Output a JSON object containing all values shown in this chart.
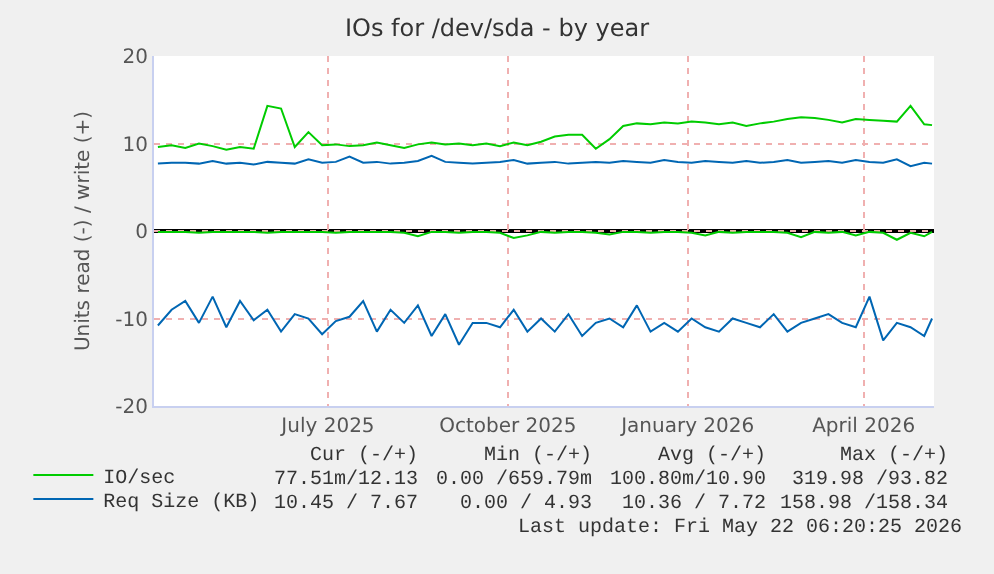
{
  "chart_data": {
    "type": "line",
    "title": "IOs for /dev/sda - by year",
    "ylabel": "Units read (-) / write (+)",
    "x": [
      "2025-04-20",
      "2025-04-27",
      "2025-05-04",
      "2025-05-11",
      "2025-05-18",
      "2025-05-25",
      "2025-06-01",
      "2025-06-08",
      "2025-06-15",
      "2025-06-22",
      "2025-06-29",
      "2025-07-06",
      "2025-07-13",
      "2025-07-20",
      "2025-07-27",
      "2025-08-03",
      "2025-08-10",
      "2025-08-17",
      "2025-08-24",
      "2025-08-31",
      "2025-09-07",
      "2025-09-14",
      "2025-09-21",
      "2025-09-28",
      "2025-10-05",
      "2025-10-12",
      "2025-10-19",
      "2025-10-26",
      "2025-11-02",
      "2025-11-09",
      "2025-11-16",
      "2025-11-23",
      "2025-11-30",
      "2025-12-07",
      "2025-12-14",
      "2025-12-21",
      "2025-12-28",
      "2026-01-04",
      "2026-01-11",
      "2026-01-18",
      "2026-01-25",
      "2026-02-01",
      "2026-02-08",
      "2026-02-15",
      "2026-02-22",
      "2026-03-01",
      "2026-03-08",
      "2026-03-15",
      "2026-03-22",
      "2026-03-29",
      "2026-04-05",
      "2026-04-12",
      "2026-04-19",
      "2026-04-26",
      "2026-05-03",
      "2026-05-10",
      "2026-05-17",
      "2026-05-21"
    ],
    "series": [
      {
        "name": "IO/sec",
        "color": "#00cc00",
        "values": [
          9.6,
          9.8,
          9.5,
          10.0,
          9.7,
          9.3,
          9.6,
          9.4,
          14.3,
          14.0,
          9.6,
          11.3,
          9.8,
          9.9,
          9.7,
          9.8,
          10.1,
          9.8,
          9.5,
          9.9,
          10.1,
          9.9,
          10.0,
          9.8,
          10.0,
          9.7,
          10.1,
          9.8,
          10.2,
          10.8,
          11.0,
          11.0,
          9.4,
          10.5,
          12.0,
          12.3,
          12.2,
          12.4,
          12.3,
          12.5,
          12.4,
          12.2,
          12.4,
          12.0,
          12.3,
          12.5,
          12.8,
          13.0,
          12.9,
          12.7,
          12.4,
          12.8,
          12.7,
          12.6,
          12.5,
          14.3,
          12.2,
          12.1
        ]
      },
      {
        "color": "#00cc00",
        "values": [
          -0.1,
          -0.1,
          -0.1,
          -0.2,
          -0.1,
          -0.1,
          -0.1,
          -0.1,
          -0.2,
          -0.1,
          -0.1,
          -0.1,
          -0.1,
          -0.2,
          -0.1,
          -0.1,
          -0.1,
          -0.1,
          -0.2,
          -0.6,
          -0.1,
          -0.1,
          -0.2,
          -0.1,
          -0.1,
          -0.2,
          -0.8,
          -0.5,
          -0.1,
          -0.2,
          -0.1,
          -0.1,
          -0.2,
          -0.4,
          -0.1,
          -0.1,
          -0.2,
          -0.1,
          -0.1,
          -0.2,
          -0.5,
          -0.1,
          -0.2,
          -0.1,
          -0.1,
          -0.1,
          -0.2,
          -0.7,
          -0.1,
          -0.2,
          -0.1,
          -0.5,
          -0.1,
          -0.2,
          -1.0,
          -0.2,
          -0.6,
          -0.1
        ]
      },
      {
        "name": "Req Size (KB)",
        "color": "#0066b3",
        "values": [
          7.7,
          7.8,
          7.8,
          7.7,
          8.0,
          7.7,
          7.8,
          7.6,
          7.9,
          7.8,
          7.7,
          8.2,
          7.8,
          7.9,
          8.5,
          7.8,
          7.9,
          7.7,
          7.8,
          8.0,
          8.6,
          7.9,
          7.8,
          7.7,
          7.8,
          7.9,
          8.1,
          7.7,
          7.8,
          7.9,
          7.7,
          7.8,
          7.9,
          7.8,
          8.0,
          7.9,
          7.8,
          8.1,
          7.9,
          7.8,
          8.0,
          7.9,
          7.8,
          8.0,
          7.8,
          7.9,
          8.1,
          7.8,
          7.9,
          8.0,
          7.8,
          8.1,
          7.9,
          7.8,
          8.2,
          7.4,
          7.8,
          7.7
        ]
      },
      {
        "color": "#0066b3",
        "values": [
          -10.8,
          -9.0,
          -8.0,
          -10.5,
          -7.5,
          -11.0,
          -8.0,
          -10.2,
          -9.0,
          -11.5,
          -9.5,
          -10.0,
          -11.8,
          -10.3,
          -9.8,
          -8.0,
          -11.5,
          -9.0,
          -10.5,
          -8.5,
          -12.0,
          -9.5,
          -13.0,
          -10.5,
          -10.5,
          -11.0,
          -9.0,
          -11.5,
          -10.0,
          -11.5,
          -9.5,
          -12.0,
          -10.5,
          -10.0,
          -11.0,
          -8.5,
          -11.5,
          -10.5,
          -11.5,
          -10.0,
          -11.0,
          -11.5,
          -10.0,
          -10.5,
          -11.0,
          -9.5,
          -11.5,
          -10.5,
          -10.0,
          -9.5,
          -10.5,
          -11.0,
          -7.5,
          -12.5,
          -10.5,
          -11.0,
          -12.0,
          -10.0
        ]
      }
    ],
    "xlim": [
      "2025-04-18",
      "2026-05-22"
    ],
    "xticks": [
      {
        "value": "2025-07-16",
        "label": "July 2025"
      },
      {
        "value": "2025-10-16",
        "label": "October 2025"
      },
      {
        "value": "2026-01-16",
        "label": "January 2026"
      },
      {
        "value": "2026-04-16",
        "label": "April 2026"
      }
    ],
    "ylim": [
      -20,
      20
    ],
    "yticks": [
      -20,
      -10,
      0,
      10,
      20
    ],
    "ref_lines": [
      {
        "axis": "y",
        "value": 0,
        "color": "#000000"
      }
    ],
    "grid": true,
    "legend": "bottom left",
    "marker": "none",
    "line_style": "solid",
    "annotations": [
      "Cur (-/+)",
      "Min (-/+)",
      "Avg (-/+)",
      "Max (-/+)",
      "77.51m/12.13",
      "0.00 /659.79m",
      "100.80m/10.90",
      "319.98 /93.82",
      "10.45 / 7.67",
      "0.00 / 4.93",
      "10.36 / 7.72",
      "158.98 /158.34",
      "Last update: Fri May 22 06:20:25 2026"
    ]
  }
}
